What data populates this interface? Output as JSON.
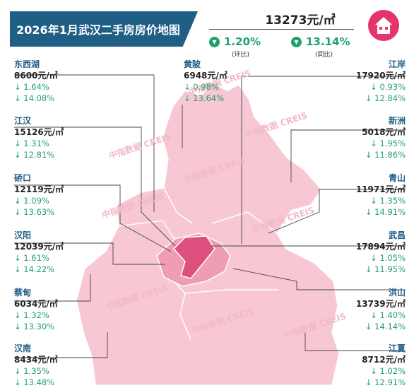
{
  "header": {
    "title": "2026年1月武汉二手房房价地图"
  },
  "overall": {
    "price": "13273元/㎡",
    "mom": "1.20%",
    "mom_caption": "(环比)",
    "yoy": "13.14%",
    "yoy_caption": "(同比)"
  },
  "districts": [
    {
      "name": "东西湖",
      "price": "8600元/㎡",
      "mom": "↓ 1.64%",
      "yoy": "↓ 14.08%"
    },
    {
      "name": "黄陂",
      "price": "6948元/㎡",
      "mom": "↓ 0.98%",
      "yoy": "↓ 13.64%"
    },
    {
      "name": "江岸",
      "price": "17920元/㎡",
      "mom": "↓ 0.93%",
      "yoy": "↓ 12.84%"
    },
    {
      "name": "江汉",
      "price": "15126元/㎡",
      "mom": "↓ 1.31%",
      "yoy": "↓ 12.81%"
    },
    {
      "name": "新洲",
      "price": "5018元/㎡",
      "mom": "↓ 1.95%",
      "yoy": "↓ 11.86%"
    },
    {
      "name": "硚口",
      "price": "12119元/㎡",
      "mom": "↓ 1.09%",
      "yoy": "↓ 13.63%"
    },
    {
      "name": "青山",
      "price": "11971元/㎡",
      "mom": "↓ 1.35%",
      "yoy": "↓ 14.91%"
    },
    {
      "name": "汉阳",
      "price": "12039元/㎡",
      "mom": "↓ 1.61%",
      "yoy": "↓ 14.22%"
    },
    {
      "name": "武昌",
      "price": "17894元/㎡",
      "mom": "↓ 1.05%",
      "yoy": "↓ 11.95%"
    },
    {
      "name": "蔡甸",
      "price": "6034元/㎡",
      "mom": "↓ 1.32%",
      "yoy": "↓ 13.30%"
    },
    {
      "name": "洪山",
      "price": "13739元/㎡",
      "mom": "↓ 1.40%",
      "yoy": "↓ 14.14%"
    },
    {
      "name": "汉南",
      "price": "8434元/㎡",
      "mom": "↓ 1.35%",
      "yoy": "↓ 13.48%"
    },
    {
      "name": "江夏",
      "price": "8712元/㎡",
      "mom": "↓ 1.02%",
      "yoy": "↓ 12.91%"
    }
  ],
  "watermark": "中指数据 CREIS",
  "colors": {
    "header": "#1f5e85",
    "accent": "#22a06b",
    "map_light": "#f6c5d3",
    "map_mid": "#ef9fb8",
    "map_dark": "#e0547e"
  }
}
